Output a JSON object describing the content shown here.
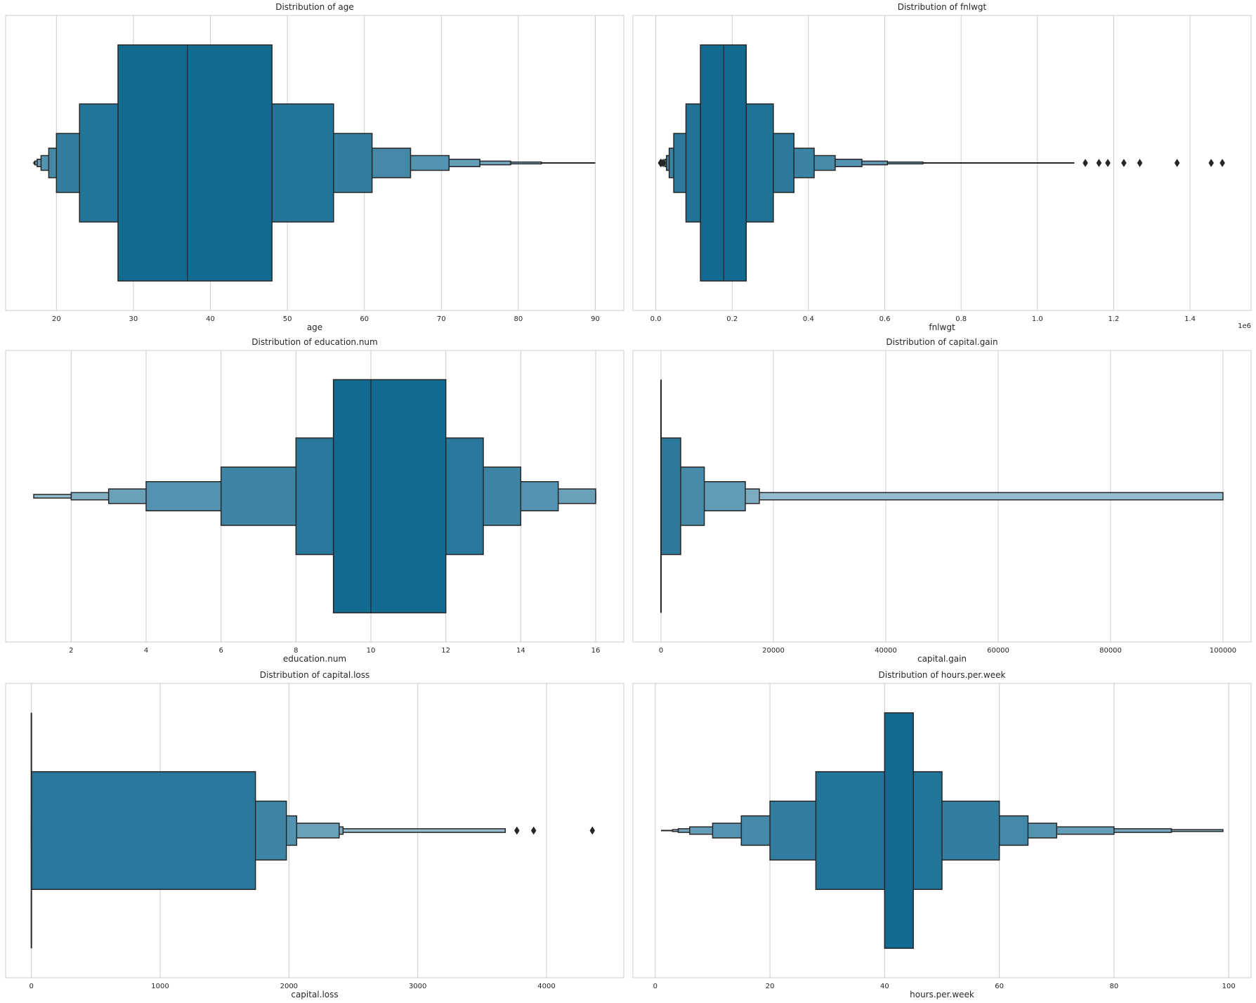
{
  "chart_data": [
    {
      "type": "boxen",
      "title": "Distribution of age",
      "xlabel": "age",
      "xlim": [
        13.4,
        93.7
      ],
      "xticks": [
        20,
        30,
        40,
        50,
        60,
        70,
        80,
        90
      ],
      "tick_labels": [
        "20",
        "30",
        "40",
        "50",
        "60",
        "70",
        "80",
        "90"
      ],
      "offset_label": "",
      "median": 37,
      "boxes": [
        [
          28,
          48
        ],
        [
          23,
          56
        ],
        [
          20,
          61
        ],
        [
          19,
          66
        ],
        [
          18,
          71
        ],
        [
          17.5,
          75
        ],
        [
          17.2,
          79
        ],
        [
          17.1,
          83
        ],
        [
          17,
          90
        ]
      ],
      "outliers": [],
      "grid": true
    },
    {
      "type": "boxen",
      "title": "Distribution of fnlwgt",
      "xlabel": "fnlwgt",
      "xlim": [
        -60000,
        1560000
      ],
      "xticks": [
        0,
        200000,
        400000,
        600000,
        800000,
        1000000,
        1200000,
        1400000
      ],
      "tick_labels": [
        "0.0",
        "0.2",
        "0.4",
        "0.6",
        "0.8",
        "1.0",
        "1.2",
        "1.4"
      ],
      "offset_label": "1e6",
      "median": 178000,
      "boxes": [
        [
          117000,
          237000
        ],
        [
          79000,
          308000
        ],
        [
          47000,
          362000
        ],
        [
          35000,
          415000
        ],
        [
          28000,
          470000
        ],
        [
          24000,
          540000
        ],
        [
          21000,
          607000
        ],
        [
          19000,
          700000
        ],
        [
          16000,
          775000
        ],
        [
          14000,
          935000
        ],
        [
          13000,
          1097000
        ]
      ],
      "outliers": [
        12285,
        13769,
        14878,
        19302,
        20098,
        1125613,
        1161363,
        1184622,
        1226583,
        1268339,
        1366120,
        1455435,
        1484705
      ],
      "grid": true
    },
    {
      "type": "boxen",
      "title": "Distribution of education.num",
      "xlabel": "education.num",
      "xlim": [
        0.25,
        16.75
      ],
      "xticks": [
        2,
        4,
        6,
        8,
        10,
        12,
        14,
        16
      ],
      "tick_labels": [
        "2",
        "4",
        "6",
        "8",
        "10",
        "12",
        "14",
        "16"
      ],
      "offset_label": "",
      "median": 10,
      "boxes": [
        [
          9,
          12
        ],
        [
          8,
          13
        ],
        [
          6,
          14
        ],
        [
          4,
          15
        ],
        [
          3,
          16
        ],
        [
          2,
          16
        ],
        [
          1,
          16
        ]
      ],
      "outliers": [],
      "grid": true
    },
    {
      "type": "boxen",
      "title": "Distribution of capital.gain",
      "xlabel": "capital.gain",
      "xlim": [
        -5000,
        105000
      ],
      "xticks": [
        0,
        20000,
        40000,
        60000,
        80000,
        100000
      ],
      "tick_labels": [
        "0",
        "20000",
        "40000",
        "60000",
        "80000",
        "100000"
      ],
      "offset_label": "",
      "median": 0,
      "boxes": [
        [
          0,
          0
        ],
        [
          0,
          3500
        ],
        [
          0,
          7700
        ],
        [
          0,
          15000
        ],
        [
          0,
          17500
        ],
        [
          0,
          99999
        ]
      ],
      "outliers": [],
      "grid": true
    },
    {
      "type": "boxen",
      "title": "Distribution of capital.loss",
      "xlabel": "capital.loss",
      "xlim": [
        -200,
        4600
      ],
      "xticks": [
        0,
        1000,
        2000,
        3000,
        4000
      ],
      "tick_labels": [
        "0",
        "1000",
        "2000",
        "3000",
        "4000"
      ],
      "offset_label": "",
      "median": 0,
      "boxes": [
        [
          0,
          0
        ],
        [
          0,
          1740
        ],
        [
          0,
          1980
        ],
        [
          0,
          2060
        ],
        [
          0,
          2390
        ],
        [
          0,
          2420
        ],
        [
          0,
          3680
        ]
      ],
      "outliers": [
        3770,
        3900,
        4356
      ],
      "grid": true
    },
    {
      "type": "boxen",
      "title": "Distribution of hours.per.week",
      "xlabel": "hours.per.week",
      "xlim": [
        -3.9,
        103.9
      ],
      "xticks": [
        0,
        20,
        40,
        60,
        80,
        100
      ],
      "tick_labels": [
        "0",
        "20",
        "40",
        "60",
        "80",
        "100"
      ],
      "offset_label": "",
      "median": 40,
      "boxes": [
        [
          40,
          45
        ],
        [
          28,
          50
        ],
        [
          20,
          60
        ],
        [
          15,
          65
        ],
        [
          10,
          70
        ],
        [
          6,
          80
        ],
        [
          4,
          90
        ],
        [
          3,
          99
        ],
        [
          1,
          99
        ]
      ],
      "outliers": [],
      "grid": true
    }
  ]
}
